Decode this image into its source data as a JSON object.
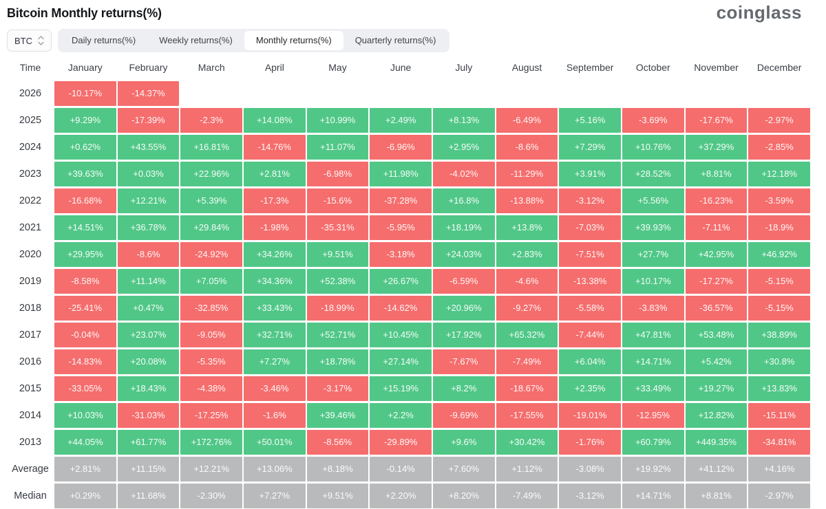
{
  "header": {
    "title": "Bitcoin Monthly returns(%)",
    "logo": "coinglass"
  },
  "controls": {
    "symbol_select": {
      "value": "BTC",
      "icon": "updown-chevron-icon"
    },
    "tabs": [
      {
        "label": "Daily returns(%)",
        "active": false
      },
      {
        "label": "Weekly returns(%)",
        "active": false
      },
      {
        "label": "Monthly returns(%)",
        "active": true
      },
      {
        "label": "Quarterly returns(%)",
        "active": false
      }
    ]
  },
  "colors": {
    "positive": "#50c787",
    "negative": "#f56d6d",
    "neutral": "#b9babc"
  },
  "table": {
    "time_header": "Time",
    "months": [
      "January",
      "February",
      "March",
      "April",
      "May",
      "June",
      "July",
      "August",
      "September",
      "October",
      "November",
      "December"
    ],
    "rows": [
      {
        "label": "2026",
        "type": "year",
        "cells": [
          "-10.17%",
          "-14.37%",
          null,
          null,
          null,
          null,
          null,
          null,
          null,
          null,
          null,
          null
        ]
      },
      {
        "label": "2025",
        "type": "year",
        "cells": [
          "+9.29%",
          "-17.39%",
          "-2.3%",
          "+14.08%",
          "+10.99%",
          "+2.49%",
          "+8.13%",
          "-6.49%",
          "+5.16%",
          "-3.69%",
          "-17.67%",
          "-2.97%"
        ]
      },
      {
        "label": "2024",
        "type": "year",
        "cells": [
          "+0.62%",
          "+43.55%",
          "+16.81%",
          "-14.76%",
          "+11.07%",
          "-6.96%",
          "+2.95%",
          "-8.6%",
          "+7.29%",
          "+10.76%",
          "+37.29%",
          "-2.85%"
        ]
      },
      {
        "label": "2023",
        "type": "year",
        "cells": [
          "+39.63%",
          "+0.03%",
          "+22.96%",
          "+2.81%",
          "-6.98%",
          "+11.98%",
          "-4.02%",
          "-11.29%",
          "+3.91%",
          "+28.52%",
          "+8.81%",
          "+12.18%"
        ]
      },
      {
        "label": "2022",
        "type": "year",
        "cells": [
          "-16.68%",
          "+12.21%",
          "+5.39%",
          "-17.3%",
          "-15.6%",
          "-37.28%",
          "+16.8%",
          "-13.88%",
          "-3.12%",
          "+5.56%",
          "-16.23%",
          "-3.59%"
        ]
      },
      {
        "label": "2021",
        "type": "year",
        "cells": [
          "+14.51%",
          "+36.78%",
          "+29.84%",
          "-1.98%",
          "-35.31%",
          "-5.95%",
          "+18.19%",
          "+13.8%",
          "-7.03%",
          "+39.93%",
          "-7.11%",
          "-18.9%"
        ]
      },
      {
        "label": "2020",
        "type": "year",
        "cells": [
          "+29.95%",
          "-8.6%",
          "-24.92%",
          "+34.26%",
          "+9.51%",
          "-3.18%",
          "+24.03%",
          "+2.83%",
          "-7.51%",
          "+27.7%",
          "+42.95%",
          "+46.92%"
        ]
      },
      {
        "label": "2019",
        "type": "year",
        "cells": [
          "-8.58%",
          "+11.14%",
          "+7.05%",
          "+34.36%",
          "+52.38%",
          "+26.67%",
          "-6.59%",
          "-4.6%",
          "-13.38%",
          "+10.17%",
          "-17.27%",
          "-5.15%"
        ]
      },
      {
        "label": "2018",
        "type": "year",
        "cells": [
          "-25.41%",
          "+0.47%",
          "-32.85%",
          "+33.43%",
          "-18.99%",
          "-14.62%",
          "+20.96%",
          "-9.27%",
          "-5.58%",
          "-3.83%",
          "-36.57%",
          "-5.15%"
        ]
      },
      {
        "label": "2017",
        "type": "year",
        "cells": [
          "-0.04%",
          "+23.07%",
          "-9.05%",
          "+32.71%",
          "+52.71%",
          "+10.45%",
          "+17.92%",
          "+65.32%",
          "-7.44%",
          "+47.81%",
          "+53.48%",
          "+38.89%"
        ]
      },
      {
        "label": "2016",
        "type": "year",
        "cells": [
          "-14.83%",
          "+20.08%",
          "-5.35%",
          "+7.27%",
          "+18.78%",
          "+27.14%",
          "-7.67%",
          "-7.49%",
          "+6.04%",
          "+14.71%",
          "+5.42%",
          "+30.8%"
        ]
      },
      {
        "label": "2015",
        "type": "year",
        "cells": [
          "-33.05%",
          "+18.43%",
          "-4.38%",
          "-3.46%",
          "-3.17%",
          "+15.19%",
          "+8.2%",
          "-18.67%",
          "+2.35%",
          "+33.49%",
          "+19.27%",
          "+13.83%"
        ]
      },
      {
        "label": "2014",
        "type": "year",
        "cells": [
          "+10.03%",
          "-31.03%",
          "-17.25%",
          "-1.6%",
          "+39.46%",
          "+2.2%",
          "-9.69%",
          "-17.55%",
          "-19.01%",
          "-12.95%",
          "+12.82%",
          "-15.11%"
        ]
      },
      {
        "label": "2013",
        "type": "year",
        "cells": [
          "+44.05%",
          "+61.77%",
          "+172.76%",
          "+50.01%",
          "-8.56%",
          "-29.89%",
          "+9.6%",
          "+30.42%",
          "-1.76%",
          "+60.79%",
          "+449.35%",
          "-34.81%"
        ]
      },
      {
        "label": "Average",
        "type": "stat",
        "cells": [
          "+2.81%",
          "+11.15%",
          "+12.21%",
          "+13.06%",
          "+8.18%",
          "-0.14%",
          "+7.60%",
          "+1.12%",
          "-3.08%",
          "+19.92%",
          "+41.12%",
          "+4.16%"
        ]
      },
      {
        "label": "Median",
        "type": "stat",
        "cells": [
          "+0.29%",
          "+11.68%",
          "-2.30%",
          "+7.27%",
          "+9.51%",
          "+2.20%",
          "+8.20%",
          "-7.49%",
          "-3.12%",
          "+14.71%",
          "+8.81%",
          "-2.97%"
        ]
      }
    ]
  }
}
